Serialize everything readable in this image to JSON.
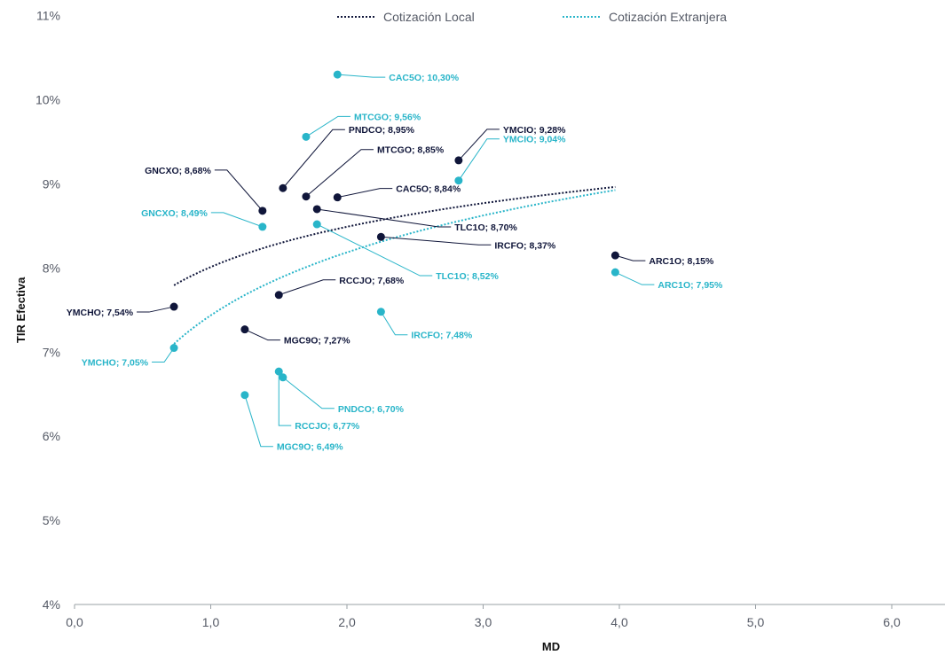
{
  "colors": {
    "local": "#10163a",
    "foreign": "#29b5c9",
    "axis": "#9aa0a6",
    "tick": "#555a66"
  },
  "chart_data": {
    "type": "scatter",
    "xlabel": "MD",
    "ylabel": "TIR Efectiva",
    "xlim": [
      0,
      6.4
    ],
    "ylim": [
      4,
      11
    ],
    "xticks": [
      "0,0",
      "1,0",
      "2,0",
      "3,0",
      "4,0",
      "5,0",
      "6,0"
    ],
    "yticks": [
      "4%",
      "5%",
      "6%",
      "7%",
      "8%",
      "9%",
      "10%",
      "11%"
    ],
    "grid": false,
    "legend_position": "top",
    "series": [
      {
        "name": "Cotización Local",
        "trendline": "logarithmic",
        "trend_range": [
          0.73,
          3.97
        ],
        "points": [
          {
            "label": "YMCHO; 7,54%",
            "x": 0.73,
            "y": 7.54
          },
          {
            "label": "GNCXO; 8,68%",
            "x": 1.38,
            "y": 8.68
          },
          {
            "label": "PNDCO; 8,95%",
            "x": 1.53,
            "y": 8.95
          },
          {
            "label": "MTCGO; 8,85%",
            "x": 1.7,
            "y": 8.85
          },
          {
            "label": "CAC5O; 8,84%",
            "x": 1.93,
            "y": 8.84
          },
          {
            "label": "TLC1O; 8,70%",
            "x": 1.78,
            "y": 8.7
          },
          {
            "label": "IRCFO; 8,37%",
            "x": 2.25,
            "y": 8.37
          },
          {
            "label": "YMCIO; 9,28%",
            "x": 2.82,
            "y": 9.28
          },
          {
            "label": "RCCJO; 7,68%",
            "x": 1.5,
            "y": 7.68
          },
          {
            "label": "MGC9O; 7,27%",
            "x": 1.25,
            "y": 7.27
          },
          {
            "label": "ARC1O; 8,15%",
            "x": 3.97,
            "y": 8.15
          }
        ]
      },
      {
        "name": "Cotización Extranjera",
        "trendline": "logarithmic",
        "trend_range": [
          0.73,
          3.97
        ],
        "points": [
          {
            "label": "CAC5O; 10,30%",
            "x": 1.93,
            "y": 10.3
          },
          {
            "label": "MTCGO; 9,56%",
            "x": 1.7,
            "y": 9.56
          },
          {
            "label": "YMCIO; 9,04%",
            "x": 2.82,
            "y": 9.04
          },
          {
            "label": "GNCXO; 8,49%",
            "x": 1.38,
            "y": 8.49
          },
          {
            "label": "TLC1O; 8,52%",
            "x": 1.78,
            "y": 8.52
          },
          {
            "label": "ARC1O; 7,95%",
            "x": 3.97,
            "y": 7.95
          },
          {
            "label": "IRCFO; 7,48%",
            "x": 2.25,
            "y": 7.48
          },
          {
            "label": "YMCHO; 7,05%",
            "x": 0.73,
            "y": 7.05
          },
          {
            "label": "PNDCO; 6,70%",
            "x": 1.53,
            "y": 6.7
          },
          {
            "label": "RCCJO; 6,77%",
            "x": 1.5,
            "y": 6.77
          },
          {
            "label": "MGC9O; 6,49%",
            "x": 1.25,
            "y": 6.49
          }
        ]
      }
    ]
  }
}
